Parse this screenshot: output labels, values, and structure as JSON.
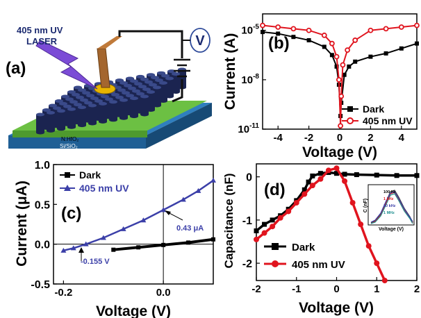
{
  "panels": {
    "a": {
      "label": "(a)",
      "laser_label_line1": "405 nm UV",
      "laser_label_line2": "LASER",
      "voltmeter_label": "V",
      "layer_top": "N:HfO₂",
      "layer_bottom": "Si/SiO₂",
      "colors": {
        "nanorod": "#1b2450",
        "film": "#6cc043",
        "substrate": "#2f7fbe",
        "laser": "#7b4bd6",
        "tip": "#a4662e",
        "spot": "#e8b400"
      }
    }
  },
  "chart_data": [
    {
      "panel": "(b)",
      "type": "line",
      "ylabel": "Current (A)",
      "xlabel": "Voltage (V)",
      "y_scale": "log",
      "xlim": [
        -5,
        5
      ],
      "ylim_exponent": [
        -11,
        -4
      ],
      "x_ticks": [
        "-4",
        "-2",
        "0",
        "2",
        "4"
      ],
      "y_ticks": [
        {
          "base": "10",
          "exp": "-11",
          "value": -11
        },
        {
          "base": "10",
          "exp": "-8",
          "value": -8
        },
        {
          "base": "10",
          "exp": "-5",
          "value": -5
        }
      ],
      "legend_position": "bottom-right",
      "series": [
        {
          "name": "Dark",
          "color": "#000000",
          "marker": "square",
          "x": [
            -5,
            -4,
            -3,
            -2,
            -1,
            -0.5,
            -0.2,
            -0.05,
            0.05,
            0.1,
            0.3,
            0.6,
            1,
            2,
            3,
            4,
            5
          ],
          "log10_y": [
            -5.1,
            -5.2,
            -5.4,
            -5.6,
            -6.0,
            -6.5,
            -7.2,
            -8.3,
            -10.2,
            -9.4,
            -7.7,
            -7.2,
            -6.9,
            -6.6,
            -6.4,
            -6.1,
            -5.8
          ]
        },
        {
          "name": "405 nm UV",
          "color": "#e0141e",
          "marker": "circle",
          "x": [
            -5,
            -4,
            -3,
            -2,
            -1,
            -0.5,
            -0.2,
            -0.05,
            0.05,
            0.1,
            0.2,
            0.5,
            1,
            2,
            3,
            4,
            5
          ],
          "log10_y": [
            -4.7,
            -4.8,
            -4.9,
            -5.0,
            -5.3,
            -5.8,
            -6.6,
            -8.0,
            -10.8,
            -9.0,
            -7.1,
            -6.2,
            -5.6,
            -5.0,
            -4.9,
            -4.8,
            -4.7
          ]
        }
      ]
    },
    {
      "panel": "(c)",
      "type": "line",
      "ylabel": "Current (μA)",
      "xlabel": "Voltage (V)",
      "xlim": [
        -0.22,
        0.1
      ],
      "ylim": [
        -0.5,
        1.0
      ],
      "x_ticks": [
        "-0.2",
        "0.0"
      ],
      "x_tick_values": [
        -0.2,
        0.0
      ],
      "y_ticks": [
        "-0.5",
        "0.0",
        "0.5",
        "1.0"
      ],
      "y_tick_values": [
        -0.5,
        0.0,
        0.5,
        1.0
      ],
      "legend_position": "top-left",
      "annotations": [
        {
          "text": "0.43 μA",
          "x": 0.0,
          "y": 0.43
        },
        {
          "text": "-0.155 V",
          "x": -0.155,
          "y": 0.0
        }
      ],
      "series": [
        {
          "name": "Dark",
          "color": "#000000",
          "marker": "square",
          "x": [
            -0.1,
            -0.05,
            0.0,
            0.05,
            0.1
          ],
          "y": [
            -0.07,
            -0.04,
            -0.01,
            0.02,
            0.06
          ]
        },
        {
          "name": "405 nm UV",
          "color": "#3b3fa8",
          "marker": "triangle",
          "x": [
            -0.2,
            -0.18,
            -0.155,
            -0.12,
            -0.08,
            -0.04,
            0.0,
            0.04,
            0.07,
            0.1
          ],
          "y": [
            -0.08,
            -0.05,
            0.0,
            0.08,
            0.19,
            0.3,
            0.43,
            0.56,
            0.67,
            0.8
          ]
        }
      ]
    },
    {
      "panel": "(d)",
      "type": "line",
      "ylabel": "Capacitance (nF)",
      "xlabel": "Voltage (V)",
      "xlim": [
        -2,
        2
      ],
      "ylim": [
        -2.4,
        0.3
      ],
      "x_ticks": [
        "-2",
        "-1",
        "0",
        "1",
        "2"
      ],
      "x_tick_values": [
        -2,
        -1,
        0,
        1,
        2
      ],
      "y_ticks": [
        "-2",
        "-1",
        "0"
      ],
      "y_tick_values": [
        -2,
        -1,
        0
      ],
      "legend_position": "bottom-left",
      "series": [
        {
          "name": "Dark",
          "color": "#000000",
          "marker": "square",
          "x": [
            -2,
            -1.8,
            -1.6,
            -1.4,
            -1.2,
            -1.0,
            -0.8,
            -0.7,
            -0.6,
            -0.4,
            -0.2,
            0.0,
            0.2,
            0.5,
            1.0,
            1.5,
            2.0
          ],
          "y": [
            -1.25,
            -1.1,
            -1.0,
            -0.9,
            -0.75,
            -0.55,
            -0.3,
            -0.12,
            0.02,
            0.08,
            0.1,
            0.08,
            0.06,
            0.05,
            0.04,
            0.03,
            0.03
          ]
        },
        {
          "name": "405 nm UV",
          "color": "#e0141e",
          "marker": "circle",
          "x": [
            -2,
            -1.8,
            -1.6,
            -1.4,
            -1.2,
            -1.0,
            -0.8,
            -0.6,
            -0.4,
            -0.2,
            0.0,
            0.2,
            0.4,
            0.6,
            0.8,
            1.0,
            1.2
          ],
          "y": [
            -1.45,
            -1.3,
            -1.15,
            -0.95,
            -0.8,
            -0.6,
            -0.4,
            -0.2,
            -0.05,
            0.15,
            0.2,
            -0.1,
            -0.6,
            -1.1,
            -1.6,
            -2.0,
            -2.4
          ]
        }
      ],
      "inset": {
        "ylabel": "C (nF)",
        "xlabel": "Voltage (V)",
        "legend": [
          "100 Hz",
          "1 kHz",
          "10 kHz",
          "1 MHz"
        ],
        "colors": [
          "#404040",
          "#e0141e",
          "#3b3fa8",
          "#1e8f8f"
        ]
      }
    }
  ]
}
